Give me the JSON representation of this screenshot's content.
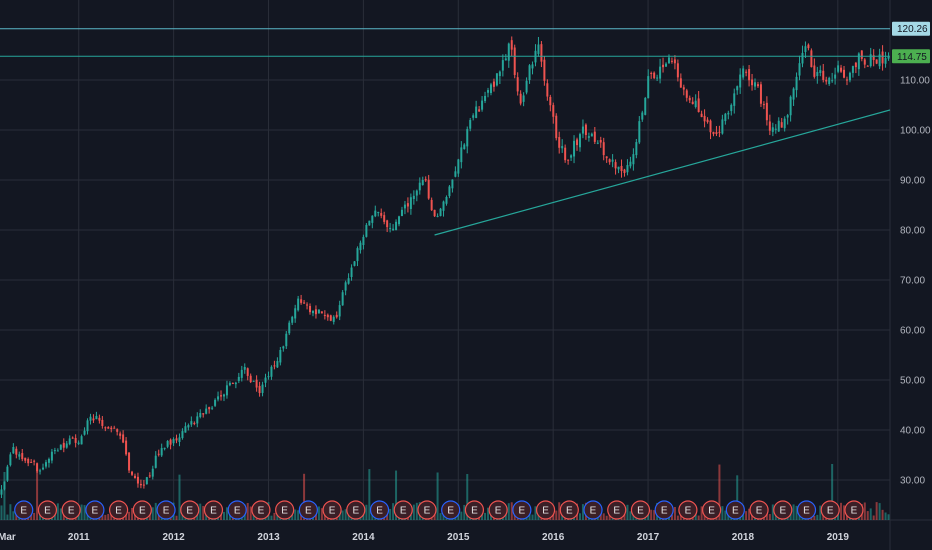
{
  "chart_data": {
    "type": "candlestick",
    "ylim": [
      22,
      126
    ],
    "y_ticks": [
      "30.00",
      "40.00",
      "50.00",
      "60.00",
      "70.00",
      "80.00",
      "90.00",
      "100.00",
      "110.00"
    ],
    "x_start_label": "Mar",
    "x_ticks": [
      "2011",
      "2012",
      "2013",
      "2014",
      "2015",
      "2016",
      "2017",
      "2018",
      "2019"
    ],
    "price_path": [
      {
        "t": 2010.17,
        "p": 27
      },
      {
        "t": 2010.3,
        "p": 36
      },
      {
        "t": 2010.45,
        "p": 34
      },
      {
        "t": 2010.6,
        "p": 32
      },
      {
        "t": 2010.8,
        "p": 37
      },
      {
        "t": 2011.0,
        "p": 38
      },
      {
        "t": 2011.12,
        "p": 43
      },
      {
        "t": 2011.3,
        "p": 41
      },
      {
        "t": 2011.45,
        "p": 39
      },
      {
        "t": 2011.55,
        "p": 31
      },
      {
        "t": 2011.7,
        "p": 29
      },
      {
        "t": 2011.85,
        "p": 36
      },
      {
        "t": 2012.0,
        "p": 38
      },
      {
        "t": 2012.3,
        "p": 43
      },
      {
        "t": 2012.55,
        "p": 48
      },
      {
        "t": 2012.75,
        "p": 52
      },
      {
        "t": 2012.9,
        "p": 48
      },
      {
        "t": 2013.1,
        "p": 54
      },
      {
        "t": 2013.3,
        "p": 66
      },
      {
        "t": 2013.45,
        "p": 64
      },
      {
        "t": 2013.7,
        "p": 62
      },
      {
        "t": 2013.9,
        "p": 74
      },
      {
        "t": 2014.1,
        "p": 84
      },
      {
        "t": 2014.3,
        "p": 80
      },
      {
        "t": 2014.5,
        "p": 86
      },
      {
        "t": 2014.65,
        "p": 90
      },
      {
        "t": 2014.75,
        "p": 82
      },
      {
        "t": 2014.9,
        "p": 88
      },
      {
        "t": 2015.0,
        "p": 94
      },
      {
        "t": 2015.1,
        "p": 100
      },
      {
        "t": 2015.25,
        "p": 106
      },
      {
        "t": 2015.4,
        "p": 110
      },
      {
        "t": 2015.55,
        "p": 118
      },
      {
        "t": 2015.65,
        "p": 104
      },
      {
        "t": 2015.75,
        "p": 112
      },
      {
        "t": 2015.85,
        "p": 118
      },
      {
        "t": 2015.95,
        "p": 106
      },
      {
        "t": 2016.05,
        "p": 98
      },
      {
        "t": 2016.15,
        "p": 94
      },
      {
        "t": 2016.3,
        "p": 100
      },
      {
        "t": 2016.45,
        "p": 98
      },
      {
        "t": 2016.6,
        "p": 94
      },
      {
        "t": 2016.75,
        "p": 92
      },
      {
        "t": 2016.85,
        "p": 96
      },
      {
        "t": 2017.0,
        "p": 110
      },
      {
        "t": 2017.15,
        "p": 112
      },
      {
        "t": 2017.25,
        "p": 114
      },
      {
        "t": 2017.4,
        "p": 106
      },
      {
        "t": 2017.55,
        "p": 104
      },
      {
        "t": 2017.7,
        "p": 98
      },
      {
        "t": 2017.85,
        "p": 104
      },
      {
        "t": 2018.0,
        "p": 112
      },
      {
        "t": 2018.15,
        "p": 108
      },
      {
        "t": 2018.3,
        "p": 100
      },
      {
        "t": 2018.45,
        "p": 102
      },
      {
        "t": 2018.55,
        "p": 110
      },
      {
        "t": 2018.65,
        "p": 118
      },
      {
        "t": 2018.75,
        "p": 112
      },
      {
        "t": 2018.9,
        "p": 110
      },
      {
        "t": 2019.0,
        "p": 112
      },
      {
        "t": 2019.1,
        "p": 110
      },
      {
        "t": 2019.2,
        "p": 114
      }
    ],
    "levels": [
      {
        "value": 120.26,
        "label": "120.26",
        "color": "#5bb7c8",
        "label_bg": "#a5d9e6"
      },
      {
        "value": 114.75,
        "label": "114.75",
        "color": "#26a69a",
        "label_bg": "#4caf50"
      }
    ],
    "trendline": {
      "start": {
        "t": 2014.75,
        "p": 79
      },
      "end": {
        "t": 2019.55,
        "p": 104
      },
      "color": "#26a69a"
    },
    "earnings_markers": {
      "start": 2010.42,
      "step": 0.25,
      "count": 36,
      "label": "E"
    },
    "colors": {
      "up": "#26a69a",
      "down": "#ef5350",
      "background": "#131722",
      "grid": "#2a2e39"
    }
  }
}
